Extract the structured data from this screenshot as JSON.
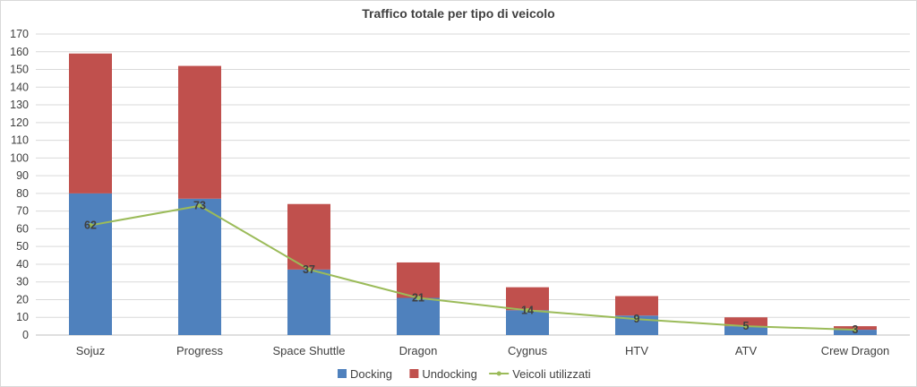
{
  "chart_data": {
    "type": "bar",
    "stacked": true,
    "title": "Traffico totale per tipo di veicolo",
    "categories": [
      "Sojuz",
      "Progress",
      "Space Shuttle",
      "Dragon",
      "Cygnus",
      "HTV",
      "ATV",
      "Crew Dragon"
    ],
    "series": [
      {
        "name": "Docking",
        "type": "bar",
        "color": "#4f81bd",
        "values": [
          80,
          77,
          37,
          21,
          14,
          11,
          5,
          3
        ]
      },
      {
        "name": "Undocking",
        "type": "bar",
        "color": "#c0504d",
        "values": [
          79,
          75,
          37,
          20,
          13,
          11,
          5,
          2
        ]
      },
      {
        "name": "Veicoli utilizzati",
        "type": "line",
        "color": "#9bbb59",
        "values": [
          62,
          73,
          37,
          21,
          14,
          9,
          5,
          3
        ]
      }
    ],
    "data_labels": [
      "62",
      "73",
      "37",
      "21",
      "14",
      "9",
      "5",
      "3"
    ],
    "ylim": [
      0,
      170
    ],
    "yticks": [
      0,
      10,
      20,
      30,
      40,
      50,
      60,
      70,
      80,
      90,
      100,
      110,
      120,
      130,
      140,
      150,
      160,
      170
    ],
    "grid": true,
    "legend_position": "bottom"
  }
}
